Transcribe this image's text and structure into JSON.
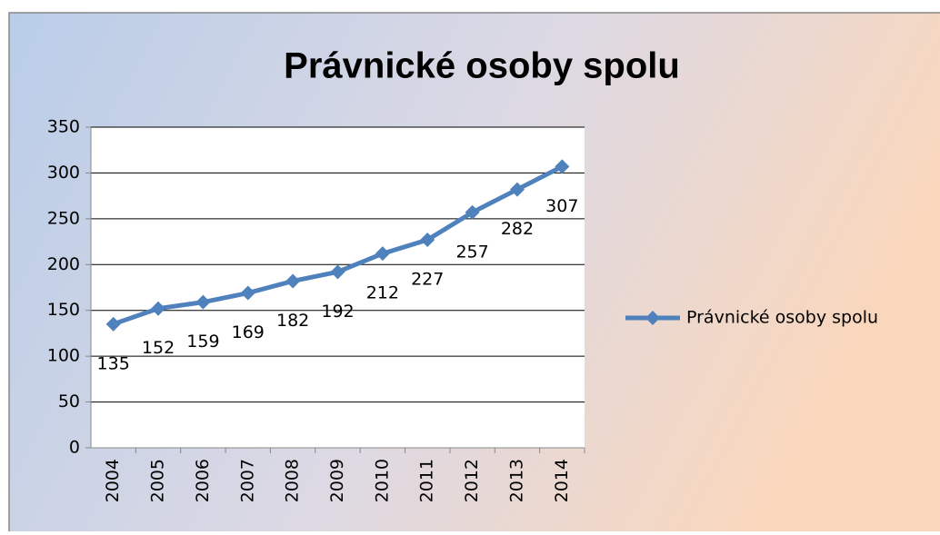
{
  "chart_data": {
    "type": "line",
    "title": "Právnické osoby spolu",
    "categories": [
      "2004",
      "2005",
      "2006",
      "2007",
      "2008",
      "2009",
      "2010",
      "2011",
      "2012",
      "2013",
      "2014"
    ],
    "series": [
      {
        "name": "Právnické osoby spolu",
        "color": "#4f81bd",
        "values": [
          135,
          152,
          159,
          169,
          182,
          192,
          212,
          227,
          257,
          282,
          307
        ]
      }
    ],
    "ylim": [
      0,
      350
    ],
    "yticks": [
      0,
      50,
      100,
      150,
      200,
      250,
      300,
      350
    ],
    "grid": true,
    "legend": "right"
  }
}
